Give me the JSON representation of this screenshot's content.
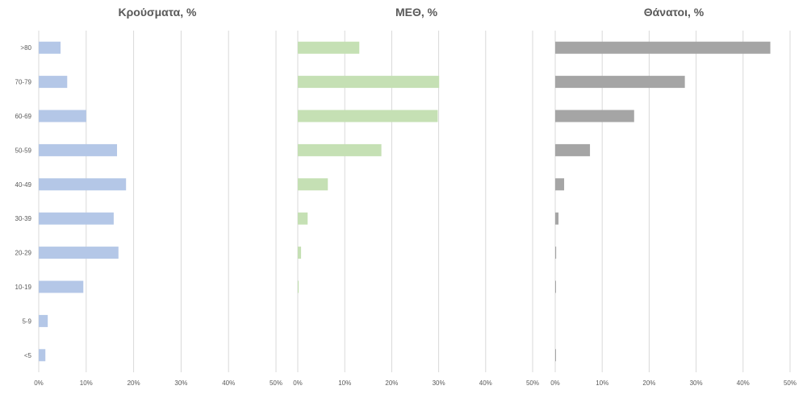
{
  "chart_data": [
    {
      "type": "bar",
      "orientation": "horizontal",
      "title": "Κρούσματα, %",
      "categories": [
        ">80",
        "70-79",
        "60-69",
        "50-59",
        "40-49",
        "30-39",
        "20-29",
        "10-19",
        "5-9",
        "<5"
      ],
      "values": [
        4.6,
        6.0,
        10.0,
        16.5,
        18.4,
        15.8,
        16.8,
        9.4,
        1.9,
        1.4
      ],
      "xlim": [
        0,
        50
      ],
      "xticks": [
        "0%",
        "10%",
        "20%",
        "30%",
        "40%",
        "50%"
      ],
      "color": "#b4c7e7",
      "grid": true
    },
    {
      "type": "bar",
      "orientation": "horizontal",
      "title": "ΜΕΘ, %",
      "categories": [
        ">80",
        "70-79",
        "60-69",
        "50-59",
        "40-49",
        "30-39",
        "20-29",
        "10-19",
        "5-9",
        "<5"
      ],
      "values": [
        13.1,
        30.1,
        29.8,
        17.8,
        6.4,
        2.1,
        0.7,
        0.2,
        0,
        0
      ],
      "xlim": [
        0,
        50
      ],
      "xticks": [
        "0%",
        "10%",
        "20%",
        "30%",
        "40%",
        "50%"
      ],
      "color": "#c5e0b4",
      "grid": true
    },
    {
      "type": "bar",
      "orientation": "horizontal",
      "title": "Θάνατοι, %",
      "categories": [
        ">80",
        "70-79",
        "60-69",
        "50-59",
        "40-49",
        "30-39",
        "20-29",
        "10-19",
        "5-9",
        "<5"
      ],
      "values": [
        45.8,
        27.6,
        16.8,
        7.4,
        1.9,
        0.7,
        0.2,
        0.1,
        0,
        0.1
      ],
      "xlim": [
        0,
        50
      ],
      "xticks": [
        "0%",
        "10%",
        "20%",
        "30%",
        "40%",
        "50%"
      ],
      "color": "#a5a5a5",
      "grid": true
    }
  ]
}
